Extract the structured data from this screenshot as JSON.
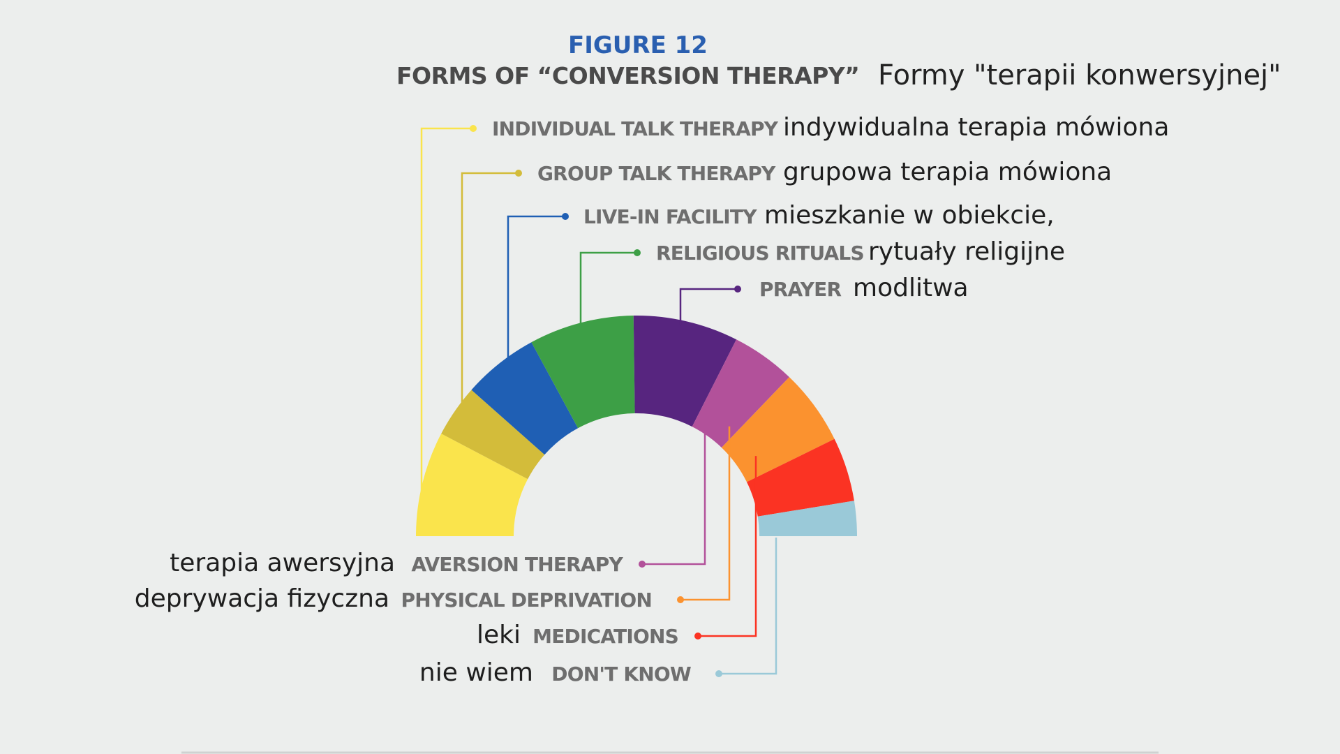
{
  "header": {
    "figure_label": "FIGURE 12",
    "title_en": "FORMS OF “CONVERSION THERAPY”",
    "title_pl": "Formy \"terapii konwersyjnej\""
  },
  "chart_data": {
    "type": "pie",
    "layout": "semicircle-donut",
    "categories": [
      "INDIVIDUAL TALK THERAPY",
      "GROUP TALK THERAPY",
      "LIVE-IN FACILITY",
      "RELIGIOUS RITUALS",
      "PRAYER",
      "AVERSION THERAPY",
      "PHYSICAL DEPRIVATION",
      "MEDICATIONS",
      "DON'T KNOW"
    ],
    "categories_pl": [
      "indywidualna terapia mówiona",
      "grupowa terapia mówiona",
      "mieszkanie w obiekcie,",
      "rytuały religijne",
      "modlitwa",
      "terapia awersyjna",
      "deprywacja fizyczna",
      "leki",
      "nie wiem"
    ],
    "values": [
      18,
      9,
      13,
      18,
      18,
      11,
      13,
      11,
      6
    ],
    "colors": [
      "#fae44c",
      "#d3bc3a",
      "#1f5fb4",
      "#3d9f46",
      "#57257f",
      "#b2519a",
      "#fb922f",
      "#fb3323",
      "#9ac9d8"
    ],
    "legend": "callout-lines"
  }
}
